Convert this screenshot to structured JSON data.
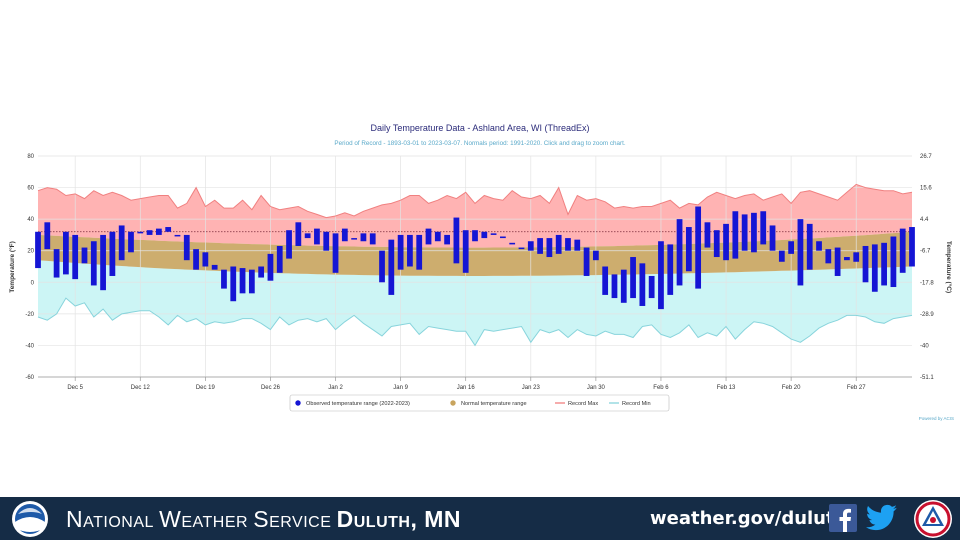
{
  "chart_data": {
    "type": "bar",
    "title": "Daily Temperature Data - Ashland Area, WI (ThreadEx)",
    "subtitle": "Period of Record - 1893-03-01 to 2023-03-07. Normals period: 1991-2020. Click and drag to zoom chart.",
    "ylabel": "Temperature (°F)",
    "ylabel_right": "Temperature (°C)",
    "ylim": [
      -60,
      80
    ],
    "yticks": [
      -60,
      -40,
      -20,
      0,
      20,
      40,
      60,
      80
    ],
    "yticks_right": [
      "-51.1",
      "-40",
      "-28.9",
      "-17.8",
      "-6.7",
      "4.4",
      "15.6",
      "26.7"
    ],
    "x_start": "2022-12-01",
    "x_ticks": [
      "Dec 5",
      "Dec 12",
      "Dec 19",
      "Dec 26",
      "Jan 2",
      "Jan 9",
      "Jan 16",
      "Jan 23",
      "Jan 30",
      "Feb 6",
      "Feb 13",
      "Feb 20",
      "Feb 27"
    ],
    "freezing_line": 32,
    "grid": true,
    "legend_position": "bottom",
    "legend": [
      "Observed temperature range (2022-2023)",
      "Normal temperature range",
      "Record Max",
      "Record Min"
    ],
    "credit": "Powered by ACIS",
    "colors": {
      "observed": "#1515d4",
      "normal": "#c8a45e",
      "record_max_fill": "#ffb3b3",
      "record_max_line": "#f08080",
      "record_min_fill": "#ccf5f5",
      "record_min_line": "#88d4dc",
      "title": "#2b2b7a",
      "subtitle": "#5aa9c9"
    },
    "normal_high_start": 30,
    "normal_high_end": 32,
    "normal_high_min": 22,
    "normal_low_start": 14,
    "normal_low_end": 10,
    "normal_low_min": 4,
    "observed": {
      "lows": [
        9,
        21,
        3,
        5,
        2,
        12,
        -2,
        -5,
        4,
        14,
        19,
        31,
        30,
        30,
        32,
        30,
        14,
        8,
        10,
        8,
        -4,
        -12,
        -7,
        -7,
        3,
        1,
        6,
        15,
        23,
        28,
        24,
        20,
        6,
        26,
        28,
        26,
        24,
        0,
        -8,
        8,
        10,
        8,
        24,
        26,
        24,
        12,
        6,
        26,
        28,
        30,
        28,
        25,
        21,
        20,
        18,
        16,
        18,
        20,
        20,
        4,
        14,
        -8,
        -10,
        -13,
        -10,
        -15,
        -10,
        -17,
        -8,
        -2,
        7,
        -4,
        22,
        16,
        14,
        15,
        20,
        19,
        24,
        20,
        13,
        18,
        -2,
        8,
        20,
        12,
        4,
        14,
        13,
        0,
        -6,
        -2,
        -3,
        6,
        10
      ],
      "highs": [
        32,
        38,
        21,
        32,
        30,
        22,
        26,
        30,
        32,
        36,
        32,
        32,
        33,
        34,
        35,
        30,
        30,
        21,
        19,
        11,
        8,
        10,
        9,
        8,
        10,
        18,
        23,
        33,
        38,
        31,
        34,
        32,
        31,
        34,
        28,
        31,
        31,
        20,
        27,
        30,
        30,
        30,
        34,
        32,
        30,
        41,
        33,
        33,
        32,
        31,
        29,
        24,
        22,
        26,
        28,
        28,
        30,
        28,
        27,
        22,
        20,
        10,
        5,
        8,
        16,
        12,
        4,
        26,
        24,
        40,
        35,
        48,
        38,
        33,
        37,
        45,
        43,
        44,
        45,
        36,
        20,
        26,
        40,
        37,
        26,
        21,
        22,
        16,
        19,
        23,
        24,
        25,
        29,
        34,
        35
      ]
    },
    "record_max": [
      58,
      60,
      59,
      55,
      56,
      53,
      58,
      55,
      57,
      55,
      52,
      53,
      54,
      55,
      55,
      47,
      50,
      60,
      48,
      52,
      47,
      47,
      52,
      46,
      55,
      48,
      46,
      47,
      48,
      45,
      43,
      41,
      42,
      44,
      42,
      45,
      47,
      49,
      50,
      52,
      55,
      55,
      50,
      52,
      55,
      53,
      57,
      50,
      55,
      53,
      52,
      58,
      54,
      53,
      55,
      50,
      60,
      43,
      55,
      52,
      53,
      51,
      47,
      48,
      47,
      48,
      48,
      50,
      52,
      47,
      50,
      49,
      54,
      57,
      55,
      53,
      55,
      56,
      52,
      54,
      56,
      50,
      57,
      58,
      56,
      54,
      52,
      57,
      62,
      60,
      59,
      58,
      58,
      56,
      57
    ],
    "record_min": [
      -22,
      -24,
      -20,
      -10,
      -15,
      -13,
      -22,
      -17,
      -24,
      -20,
      -19,
      -18,
      -18,
      -22,
      -27,
      -21,
      -25,
      -23,
      -27,
      -25,
      -26,
      -25,
      -23,
      -23,
      -26,
      -30,
      -22,
      -27,
      -24,
      -23,
      -25,
      -23,
      -30,
      -25,
      -21,
      -26,
      -30,
      -34,
      -28,
      -27,
      -26,
      -33,
      -28,
      -29,
      -30,
      -31,
      -31,
      -40,
      -30,
      -31,
      -30,
      -29,
      -28,
      -38,
      -30,
      -32,
      -30,
      -35,
      -30,
      -33,
      -34,
      -31,
      -33,
      -33,
      -35,
      -28,
      -27,
      -33,
      -35,
      -32,
      -27,
      -35,
      -32,
      -34,
      -28,
      -36,
      -30,
      -25,
      -26,
      -28,
      -32,
      -36,
      -38,
      -34,
      -29,
      -26,
      -24,
      -21,
      -21,
      -22,
      -25,
      -26,
      -23,
      -22,
      -21
    ]
  },
  "footer": {
    "org_first": "National",
    "org_second": "Weather",
    "org_third": "Service",
    "org_office": "Duluth, MN",
    "url": "weather.gov/duluth",
    "noaa_logo_icon": "noaa-logo-icon",
    "facebook_icon": "facebook-icon",
    "twitter_icon": "twitter-icon",
    "nws_logo_icon": "nws-logo-icon"
  }
}
